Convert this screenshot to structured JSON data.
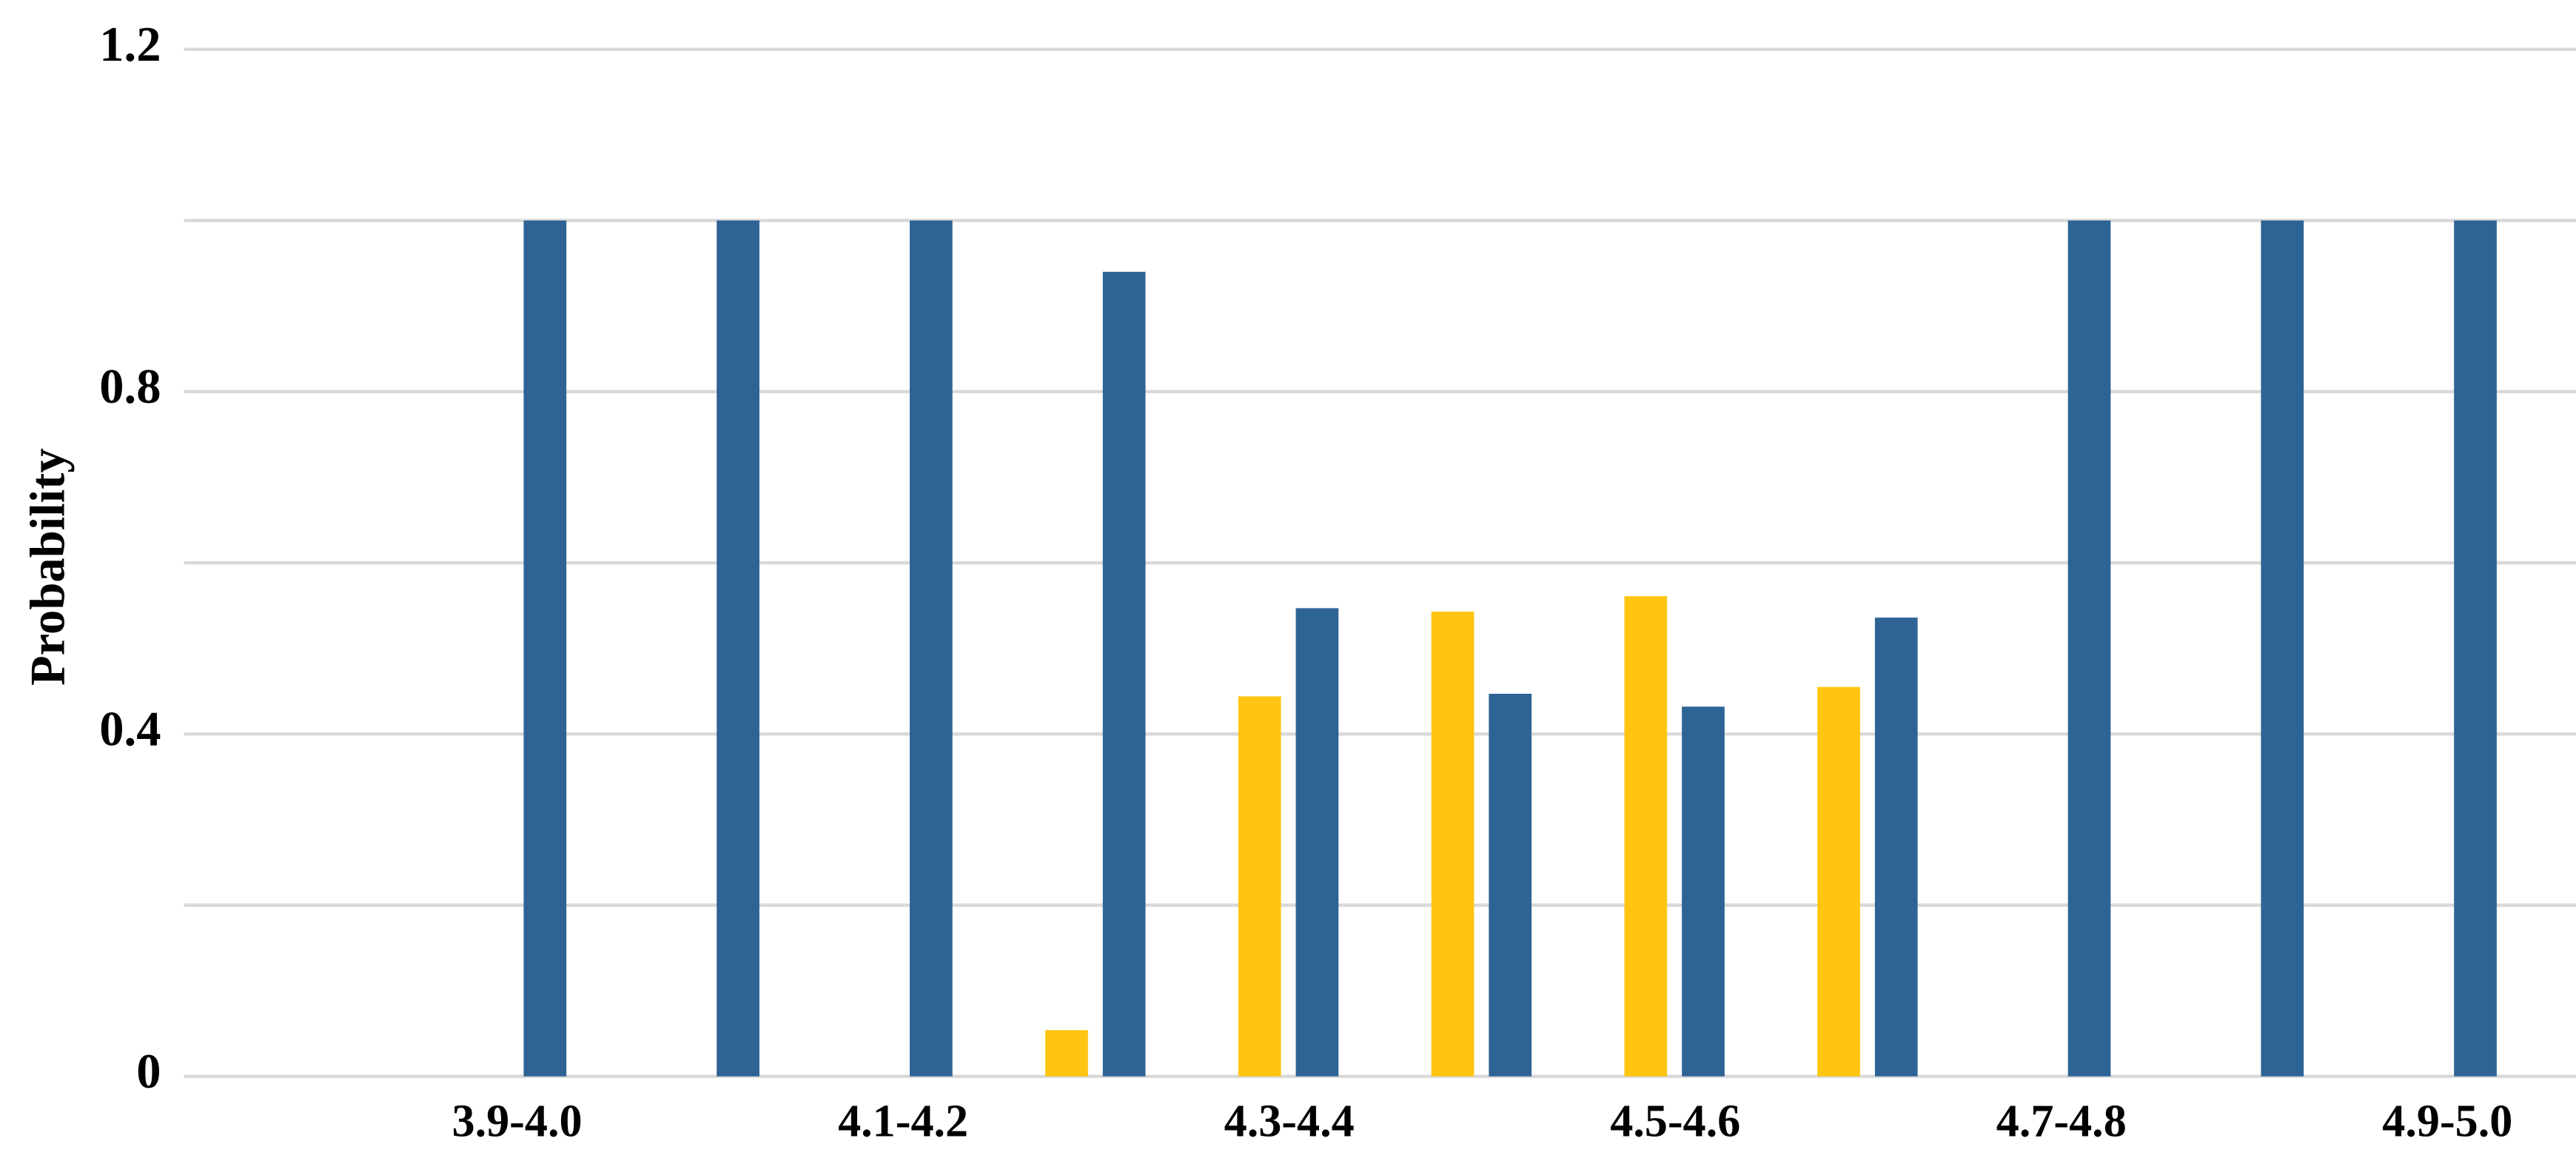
{
  "chart_data": {
    "type": "bar",
    "y_label": "Probability",
    "categories": [
      "3.9-4.0",
      null,
      "4.1-4.2",
      null,
      "4.3-4.4",
      null,
      "4.5-4.6",
      null,
      "4.7-4.8",
      null,
      "4.9-5.0"
    ],
    "series": [
      {
        "color": "#ffc512",
        "values": [
          0,
          0,
          0,
          0.054,
          0.444,
          0.543,
          0.561,
          0.455,
          0,
          0,
          0
        ]
      },
      {
        "color": "#2e6395",
        "values": [
          1,
          1,
          1,
          0.94,
          0.547,
          0.447,
          0.432,
          0.536,
          1,
          1,
          1
        ]
      }
    ],
    "ylim": [
      0,
      1.2
    ],
    "yticks": [
      0,
      0.4,
      0.8,
      1.2
    ],
    "minor_yticks": [
      0.2,
      0.6,
      1.0
    ],
    "grid": true
  }
}
